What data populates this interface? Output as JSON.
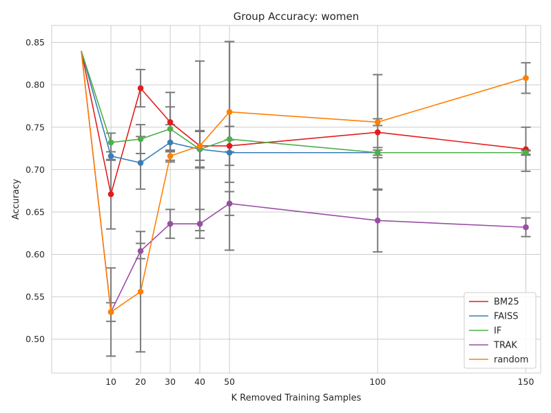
{
  "chart_data": {
    "type": "line",
    "title": "Group Accuracy: women",
    "xlabel": "K Removed Training Samples",
    "ylabel": "Accuracy",
    "xlim": [
      -10,
      155
    ],
    "ylim": [
      0.46,
      0.87
    ],
    "xticks": [
      10,
      20,
      30,
      40,
      50,
      100,
      150
    ],
    "yticks": [
      0.5,
      0.55,
      0.6,
      0.65,
      0.7,
      0.75,
      0.8,
      0.85
    ],
    "ytick_labels": [
      "0.50",
      "0.55",
      "0.60",
      "0.65",
      "0.70",
      "0.75",
      "0.80",
      "0.85"
    ],
    "grid": true,
    "legend_position": "bottom-right",
    "errorbar_color": "#7a7a7a",
    "series": [
      {
        "name": "BM25",
        "color": "#e41a1c",
        "x": [
          0,
          10,
          20,
          30,
          40,
          50,
          100,
          150
        ],
        "y": [
          0.84,
          0.671,
          0.796,
          0.756,
          0.728,
          0.728,
          0.744,
          0.724
        ],
        "err": [
          null,
          0.041,
          0.022,
          0.035,
          0.1,
          0.123,
          0.068,
          0.026
        ]
      },
      {
        "name": "FAISS",
        "color": "#377eb8",
        "x": [
          0,
          10,
          20,
          30,
          40,
          50,
          100,
          150
        ],
        "y": [
          0.84,
          0.716,
          0.708,
          0.732,
          0.724,
          0.72,
          0.72,
          0.72
        ],
        "err": [
          null,
          0.005,
          0.031,
          0.021,
          0.021,
          0.015,
          0.006,
          0.003
        ]
      },
      {
        "name": "IF",
        "color": "#4daf4a",
        "x": [
          0,
          10,
          20,
          30,
          40,
          50,
          100,
          150
        ],
        "y": [
          0.84,
          0.732,
          0.736,
          0.748,
          0.724,
          0.736,
          0.72,
          0.72
        ],
        "err": [
          null,
          0.011,
          0.017,
          0.026,
          0.022,
          0.015,
          0.003,
          0.002
        ]
      },
      {
        "name": "TRAK",
        "color": "#984ea3",
        "x": [
          0,
          10,
          20,
          30,
          40,
          50,
          100,
          150
        ],
        "y": [
          0.84,
          0.532,
          0.604,
          0.636,
          0.636,
          0.66,
          0.64,
          0.632
        ],
        "err": [
          null,
          0.011,
          0.009,
          0.017,
          0.017,
          0.014,
          0.037,
          0.011
        ]
      },
      {
        "name": "random",
        "color": "#ff7f00",
        "x": [
          0,
          10,
          20,
          30,
          40,
          50,
          100,
          150
        ],
        "y": [
          0.84,
          0.532,
          0.556,
          0.716,
          0.728,
          0.768,
          0.756,
          0.808
        ],
        "err": [
          null,
          0.052,
          0.071,
          0.007,
          0.017,
          0.083,
          0.004,
          0.018
        ]
      }
    ]
  }
}
